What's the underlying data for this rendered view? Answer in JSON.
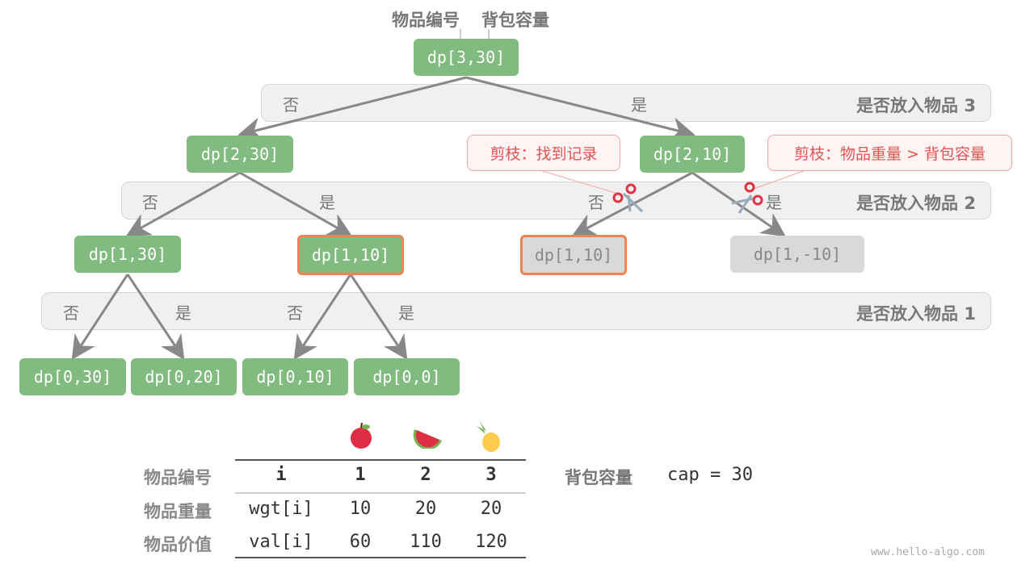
{
  "header": {
    "index_label": "物品编号",
    "capacity_label": "背包容量"
  },
  "tree": {
    "root": "dp[3,30]",
    "level2": [
      "dp[2,30]",
      "dp[2,10]"
    ],
    "level3": [
      "dp[1,30]",
      "dp[1,10]",
      "dp[1,10]",
      "dp[1,-10]"
    ],
    "leaves": [
      "dp[0,30]",
      "dp[0,20]",
      "dp[0,10]",
      "dp[0,0]"
    ],
    "bands": [
      "是否放入物品 3",
      "是否放入物品 2",
      "是否放入物品 1"
    ],
    "no": "否",
    "yes": "是",
    "callouts": [
      "剪枝：找到记录",
      "剪枝：物品重量 > 背包容量"
    ]
  },
  "table": {
    "icons": [
      "apple-icon",
      "watermelon-icon",
      "pineapple-icon"
    ],
    "row_labels": [
      "物品编号",
      "物品重量",
      "物品价值"
    ],
    "header": [
      "i",
      "1",
      "2",
      "3"
    ],
    "wgt": [
      "wgt[i]",
      "10",
      "20",
      "20"
    ],
    "val": [
      "val[i]",
      "60",
      "110",
      "120"
    ],
    "capacity_label": "背包容量",
    "capacity": "cap = 30"
  },
  "watermark": "www.hello-algo.com",
  "colors": {
    "node": "#82bb7f",
    "pruned": "#d9d9d9",
    "highlight": "#f0834f",
    "callout": "#e25555"
  }
}
